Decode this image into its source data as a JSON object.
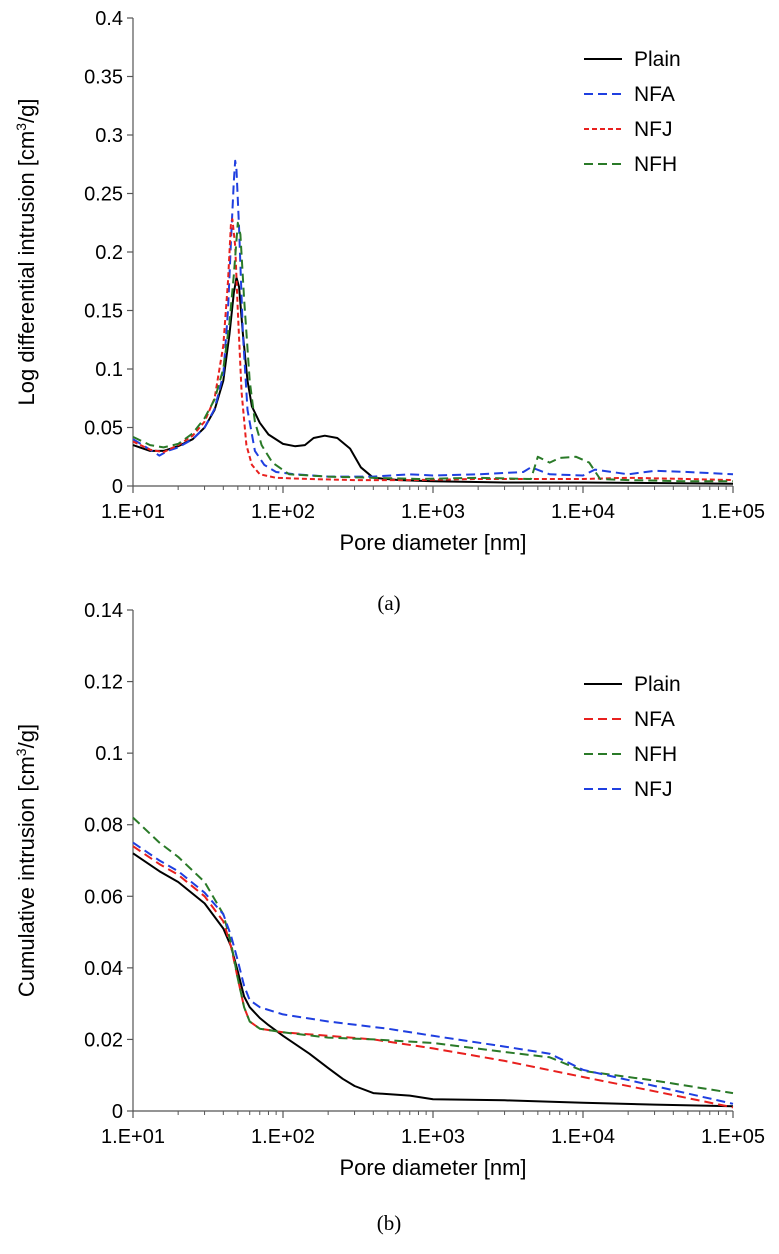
{
  "chart_data": [
    {
      "type": "line",
      "caption": "(a)",
      "xlabel": "Pore diameter [nm]",
      "ylabel_main": "Log differential intrusion [cm",
      "ylabel_sup": "3",
      "ylabel_end": "/g]",
      "x_scale": "log",
      "xlim": [
        10,
        100000
      ],
      "ylim": [
        0,
        0.4
      ],
      "x_ticks": [
        "1.E+01",
        "1.E+02",
        "1.E+03",
        "1.E+04",
        "1.E+05"
      ],
      "y_ticks": [
        "0",
        "0.05",
        "0.1",
        "0.15",
        "0.2",
        "0.25",
        "0.3",
        "0.35",
        "0.4"
      ],
      "grid": false,
      "legend_position": "top-right",
      "series": [
        {
          "name": "Plain",
          "color": "#000000",
          "dash": "solid",
          "points": [
            [
              10,
              0.035
            ],
            [
              13,
              0.03
            ],
            [
              16,
              0.03
            ],
            [
              20,
              0.034
            ],
            [
              25,
              0.04
            ],
            [
              30,
              0.05
            ],
            [
              35,
              0.065
            ],
            [
              40,
              0.09
            ],
            [
              44,
              0.13
            ],
            [
              47,
              0.165
            ],
            [
              49,
              0.178
            ],
            [
              51,
              0.17
            ],
            [
              54,
              0.13
            ],
            [
              58,
              0.09
            ],
            [
              62,
              0.068
            ],
            [
              70,
              0.054
            ],
            [
              80,
              0.044
            ],
            [
              100,
              0.036
            ],
            [
              120,
              0.034
            ],
            [
              140,
              0.035
            ],
            [
              160,
              0.041
            ],
            [
              190,
              0.043
            ],
            [
              230,
              0.041
            ],
            [
              280,
              0.032
            ],
            [
              330,
              0.016
            ],
            [
              400,
              0.007
            ],
            [
              600,
              0.005
            ],
            [
              1000,
              0.004
            ],
            [
              3000,
              0.003
            ],
            [
              10000,
              0.003
            ],
            [
              100000,
              0.002
            ]
          ]
        },
        {
          "name": "NFA",
          "color": "#1f3fe0",
          "dash": "long",
          "points": [
            [
              10,
              0.04
            ],
            [
              13,
              0.031
            ],
            [
              15,
              0.026
            ],
            [
              17,
              0.03
            ],
            [
              20,
              0.033
            ],
            [
              25,
              0.04
            ],
            [
              30,
              0.05
            ],
            [
              35,
              0.066
            ],
            [
              40,
              0.095
            ],
            [
              43,
              0.15
            ],
            [
              45,
              0.21
            ],
            [
              47,
              0.26
            ],
            [
              48,
              0.278
            ],
            [
              49,
              0.27
            ],
            [
              51,
              0.22
            ],
            [
              54,
              0.13
            ],
            [
              58,
              0.065
            ],
            [
              65,
              0.03
            ],
            [
              75,
              0.018
            ],
            [
              90,
              0.012
            ],
            [
              120,
              0.01
            ],
            [
              200,
              0.008
            ],
            [
              400,
              0.008
            ],
            [
              700,
              0.01
            ],
            [
              1000,
              0.009
            ],
            [
              2000,
              0.01
            ],
            [
              4000,
              0.012
            ],
            [
              4500,
              0.016
            ],
            [
              6000,
              0.01
            ],
            [
              10000,
              0.009
            ],
            [
              12000,
              0.014
            ],
            [
              20000,
              0.01
            ],
            [
              30000,
              0.013
            ],
            [
              50000,
              0.012
            ],
            [
              100000,
              0.01
            ]
          ]
        },
        {
          "name": "NFJ",
          "color": "#e8201e",
          "dash": "short",
          "points": [
            [
              10,
              0.038
            ],
            [
              13,
              0.031
            ],
            [
              16,
              0.029
            ],
            [
              20,
              0.035
            ],
            [
              25,
              0.043
            ],
            [
              30,
              0.055
            ],
            [
              35,
              0.075
            ],
            [
              40,
              0.12
            ],
            [
              43,
              0.175
            ],
            [
              45,
              0.225
            ],
            [
              46,
              0.228
            ],
            [
              48,
              0.205
            ],
            [
              50,
              0.15
            ],
            [
              53,
              0.08
            ],
            [
              57,
              0.035
            ],
            [
              62,
              0.018
            ],
            [
              70,
              0.01
            ],
            [
              90,
              0.007
            ],
            [
              150,
              0.006
            ],
            [
              300,
              0.005
            ],
            [
              700,
              0.005
            ],
            [
              2000,
              0.006
            ],
            [
              5000,
              0.006
            ],
            [
              10000,
              0.006
            ],
            [
              20000,
              0.007
            ],
            [
              50000,
              0.006
            ],
            [
              100000,
              0.005
            ]
          ]
        },
        {
          "name": "NFH",
          "color": "#2a7a28",
          "dash": "long",
          "points": [
            [
              10,
              0.042
            ],
            [
              13,
              0.035
            ],
            [
              16,
              0.033
            ],
            [
              20,
              0.036
            ],
            [
              25,
              0.045
            ],
            [
              30,
              0.058
            ],
            [
              35,
              0.074
            ],
            [
              40,
              0.1
            ],
            [
              44,
              0.14
            ],
            [
              47,
              0.18
            ],
            [
              50,
              0.225
            ],
            [
              52,
              0.215
            ],
            [
              55,
              0.16
            ],
            [
              60,
              0.09
            ],
            [
              65,
              0.055
            ],
            [
              72,
              0.035
            ],
            [
              85,
              0.02
            ],
            [
              110,
              0.01
            ],
            [
              200,
              0.008
            ],
            [
              400,
              0.007
            ],
            [
              800,
              0.006
            ],
            [
              2000,
              0.007
            ],
            [
              4500,
              0.006
            ],
            [
              5000,
              0.025
            ],
            [
              6000,
              0.02
            ],
            [
              7000,
              0.024
            ],
            [
              9000,
              0.025
            ],
            [
              11000,
              0.02
            ],
            [
              13000,
              0.006
            ],
            [
              20000,
              0.005
            ],
            [
              50000,
              0.004
            ],
            [
              100000,
              0.004
            ]
          ]
        }
      ]
    },
    {
      "type": "line",
      "caption": "(b)",
      "xlabel": "Pore diameter [nm]",
      "ylabel_main": "Cumulative intrusion [cm",
      "ylabel_sup": "3",
      "ylabel_end": "/g]",
      "x_scale": "log",
      "xlim": [
        10,
        100000
      ],
      "ylim": [
        0,
        0.14
      ],
      "x_ticks": [
        "1.E+01",
        "1.E+02",
        "1.E+03",
        "1.E+04",
        "1.E+05"
      ],
      "y_ticks": [
        "0",
        "0.02",
        "0.04",
        "0.06",
        "0.08",
        "0.1",
        "0.12",
        "0.14"
      ],
      "grid": false,
      "legend_position": "top-right",
      "series": [
        {
          "name": "Plain",
          "color": "#000000",
          "dash": "solid",
          "points": [
            [
              10,
              0.072
            ],
            [
              15,
              0.067
            ],
            [
              20,
              0.064
            ],
            [
              30,
              0.058
            ],
            [
              40,
              0.051
            ],
            [
              45,
              0.046
            ],
            [
              50,
              0.039
            ],
            [
              55,
              0.032
            ],
            [
              60,
              0.029
            ],
            [
              70,
              0.026
            ],
            [
              80,
              0.024
            ],
            [
              100,
              0.021
            ],
            [
              150,
              0.016
            ],
            [
              200,
              0.012
            ],
            [
              250,
              0.009
            ],
            [
              300,
              0.007
            ],
            [
              400,
              0.005
            ],
            [
              700,
              0.0043
            ],
            [
              1000,
              0.0033
            ],
            [
              3000,
              0.003
            ],
            [
              10000,
              0.0023
            ],
            [
              30000,
              0.0018
            ],
            [
              100000,
              0.0013
            ]
          ]
        },
        {
          "name": "NFA",
          "color": "#e8201e",
          "dash": "long",
          "points": [
            [
              10,
              0.074
            ],
            [
              15,
              0.069
            ],
            [
              20,
              0.066
            ],
            [
              30,
              0.06
            ],
            [
              40,
              0.053
            ],
            [
              45,
              0.046
            ],
            [
              50,
              0.037
            ],
            [
              55,
              0.029
            ],
            [
              60,
              0.025
            ],
            [
              70,
              0.023
            ],
            [
              100,
              0.022
            ],
            [
              200,
              0.021
            ],
            [
              400,
              0.02
            ],
            [
              1000,
              0.0175
            ],
            [
              3000,
              0.014
            ],
            [
              10000,
              0.0095
            ],
            [
              30000,
              0.0055
            ],
            [
              100000,
              0.001
            ]
          ]
        },
        {
          "name": "NFH",
          "color": "#2a7a28",
          "dash": "long",
          "points": [
            [
              10,
              0.082
            ],
            [
              15,
              0.075
            ],
            [
              20,
              0.071
            ],
            [
              30,
              0.064
            ],
            [
              40,
              0.055
            ],
            [
              45,
              0.047
            ],
            [
              50,
              0.037
            ],
            [
              55,
              0.029
            ],
            [
              60,
              0.025
            ],
            [
              70,
              0.023
            ],
            [
              100,
              0.022
            ],
            [
              200,
              0.0205
            ],
            [
              400,
              0.02
            ],
            [
              1000,
              0.019
            ],
            [
              3000,
              0.0165
            ],
            [
              6000,
              0.015
            ],
            [
              10000,
              0.0112
            ],
            [
              30000,
              0.0085
            ],
            [
              100000,
              0.005
            ]
          ]
        },
        {
          "name": "NFJ",
          "color": "#1f3fe0",
          "dash": "long",
          "points": [
            [
              10,
              0.075
            ],
            [
              15,
              0.07
            ],
            [
              20,
              0.067
            ],
            [
              30,
              0.061
            ],
            [
              40,
              0.055
            ],
            [
              45,
              0.049
            ],
            [
              50,
              0.042
            ],
            [
              55,
              0.035
            ],
            [
              60,
              0.031
            ],
            [
              70,
              0.029
            ],
            [
              100,
              0.027
            ],
            [
              200,
              0.025
            ],
            [
              500,
              0.023
            ],
            [
              1000,
              0.021
            ],
            [
              3000,
              0.018
            ],
            [
              6000,
              0.016
            ],
            [
              8000,
              0.0135
            ],
            [
              10000,
              0.0115
            ],
            [
              30000,
              0.007
            ],
            [
              100000,
              0.002
            ]
          ]
        }
      ]
    }
  ]
}
